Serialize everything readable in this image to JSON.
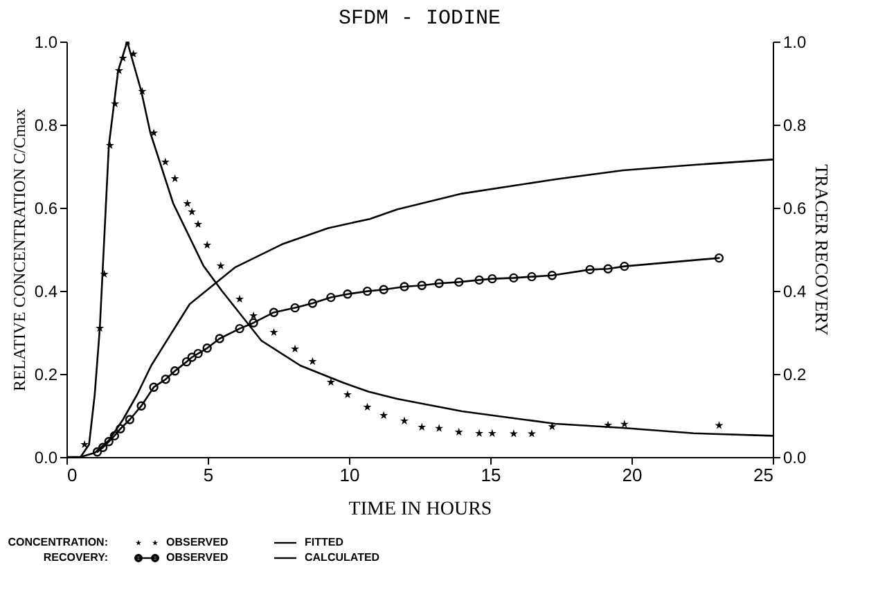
{
  "chart_data": {
    "type": "line",
    "title": "SFDM - IODINE",
    "xlabel": "TIME IN HOURS",
    "ylabel": "RELATIVE CONCENTRATION C/Cmax",
    "y2label": "TRACER RECOVERY",
    "xlim": [
      0,
      25
    ],
    "xticks": [
      0,
      5,
      10,
      15,
      20,
      25
    ],
    "ylim": [
      0,
      1
    ],
    "yticks": [
      {
        "value": 0,
        "label": "0.0"
      },
      {
        "value": 0.2,
        "label": "0.2"
      },
      {
        "value": 0.4,
        "label": "0.4"
      },
      {
        "value": 0.6,
        "label": "0.6"
      },
      {
        "value": 0.8,
        "label": "0.8"
      },
      {
        "value": 1,
        "label": "1.0"
      }
    ],
    "y2lim": [
      0,
      1
    ],
    "y2ticks": [
      {
        "value": 0,
        "label": "0.0"
      },
      {
        "value": 0.2,
        "label": "0.2"
      },
      {
        "value": 0.4,
        "label": "0.4"
      },
      {
        "value": 0.6,
        "label": "0.6"
      },
      {
        "value": 0.8,
        "label": "0.8"
      },
      {
        "value": 1,
        "label": "1.0"
      }
    ],
    "grid": false,
    "legend": "bottom",
    "annotations": [
      "CONCENTRATION:",
      "RECOVERY:"
    ],
    "series": [
      {
        "name": "OBSERVED",
        "type": "scatter",
        "marker": "star",
        "color": "#000000",
        "x": [
          0.64,
          1.18,
          1.34,
          1.54,
          1.72,
          1.86,
          2.0,
          2.16,
          2.37,
          2.68,
          3.09,
          3.5,
          3.84,
          4.28,
          4.44,
          4.66,
          4.98,
          5.46,
          6.13,
          6.62,
          7.34,
          8.09,
          8.71,
          9.36,
          9.95,
          10.65,
          11.23,
          11.96,
          12.58,
          13.19,
          13.89,
          14.61,
          15.07,
          15.83,
          16.47,
          17.19,
          19.17,
          19.75,
          23.1
        ],
        "values": [
          0.03,
          0.31,
          0.44,
          0.75,
          0.85,
          0.93,
          0.96,
          1.0,
          0.97,
          0.88,
          0.78,
          0.71,
          0.67,
          0.61,
          0.59,
          0.56,
          0.51,
          0.46,
          0.38,
          0.34,
          0.3,
          0.26,
          0.23,
          0.18,
          0.15,
          0.12,
          0.1,
          0.087,
          0.072,
          0.069,
          0.06,
          0.057,
          0.057,
          0.056,
          0.056,
          0.073,
          0.077,
          0.079,
          0.076
        ]
      },
      {
        "name": "FITTED",
        "marker": "none",
        "line_style": "solid",
        "color": "#000000",
        "x": [
          0.0,
          0.5,
          0.8,
          1.0,
          1.18,
          1.5,
          1.83,
          2.15,
          2.65,
          2.97,
          3.78,
          4.85,
          5.5,
          6.9,
          8.28,
          9.75,
          10.7,
          11.7,
          14.0,
          17.3,
          19.7,
          22.2,
          25.0
        ],
        "values": [
          0.0,
          0.0,
          0.03,
          0.15,
          0.31,
          0.75,
          0.93,
          1.0,
          0.88,
          0.78,
          0.61,
          0.46,
          0.4,
          0.28,
          0.22,
          0.18,
          0.157,
          0.14,
          0.11,
          0.08,
          0.07,
          0.057,
          0.051
        ]
      },
      {
        "name": "OBSERVED",
        "axis": "y2",
        "marker": "circle",
        "line_style": "solid",
        "color": "#000000",
        "x": [
          1.09,
          1.29,
          1.5,
          1.7,
          1.91,
          2.24,
          2.65,
          3.09,
          3.51,
          3.84,
          4.25,
          4.44,
          4.66,
          4.98,
          5.42,
          6.13,
          6.62,
          7.34,
          8.09,
          8.71,
          9.36,
          9.95,
          10.65,
          11.23,
          11.96,
          12.58,
          13.19,
          13.89,
          14.61,
          15.07,
          15.83,
          16.47,
          17.19,
          18.53,
          19.17,
          19.75,
          23.1
        ],
        "values": [
          0.012,
          0.023,
          0.037,
          0.051,
          0.068,
          0.09,
          0.123,
          0.168,
          0.187,
          0.207,
          0.229,
          0.24,
          0.249,
          0.262,
          0.285,
          0.309,
          0.323,
          0.348,
          0.359,
          0.37,
          0.384,
          0.392,
          0.399,
          0.403,
          0.41,
          0.413,
          0.418,
          0.421,
          0.426,
          0.429,
          0.431,
          0.434,
          0.437,
          0.451,
          0.453,
          0.459,
          0.479
        ]
      },
      {
        "name": "CALCULATED",
        "axis": "y2",
        "marker": "none",
        "line_style": "solid",
        "color": "#000000",
        "x": [
          0.5,
          1.0,
          1.5,
          2.0,
          2.5,
          3.0,
          3.54,
          4.36,
          5.98,
          7.63,
          9.26,
          10.74,
          11.7,
          14.0,
          17.26,
          19.7,
          22.16,
          25.0
        ],
        "values": [
          0.0,
          0.01,
          0.04,
          0.09,
          0.15,
          0.22,
          0.279,
          0.368,
          0.457,
          0.512,
          0.551,
          0.573,
          0.596,
          0.634,
          0.668,
          0.69,
          0.703,
          0.716
        ]
      }
    ]
  }
}
